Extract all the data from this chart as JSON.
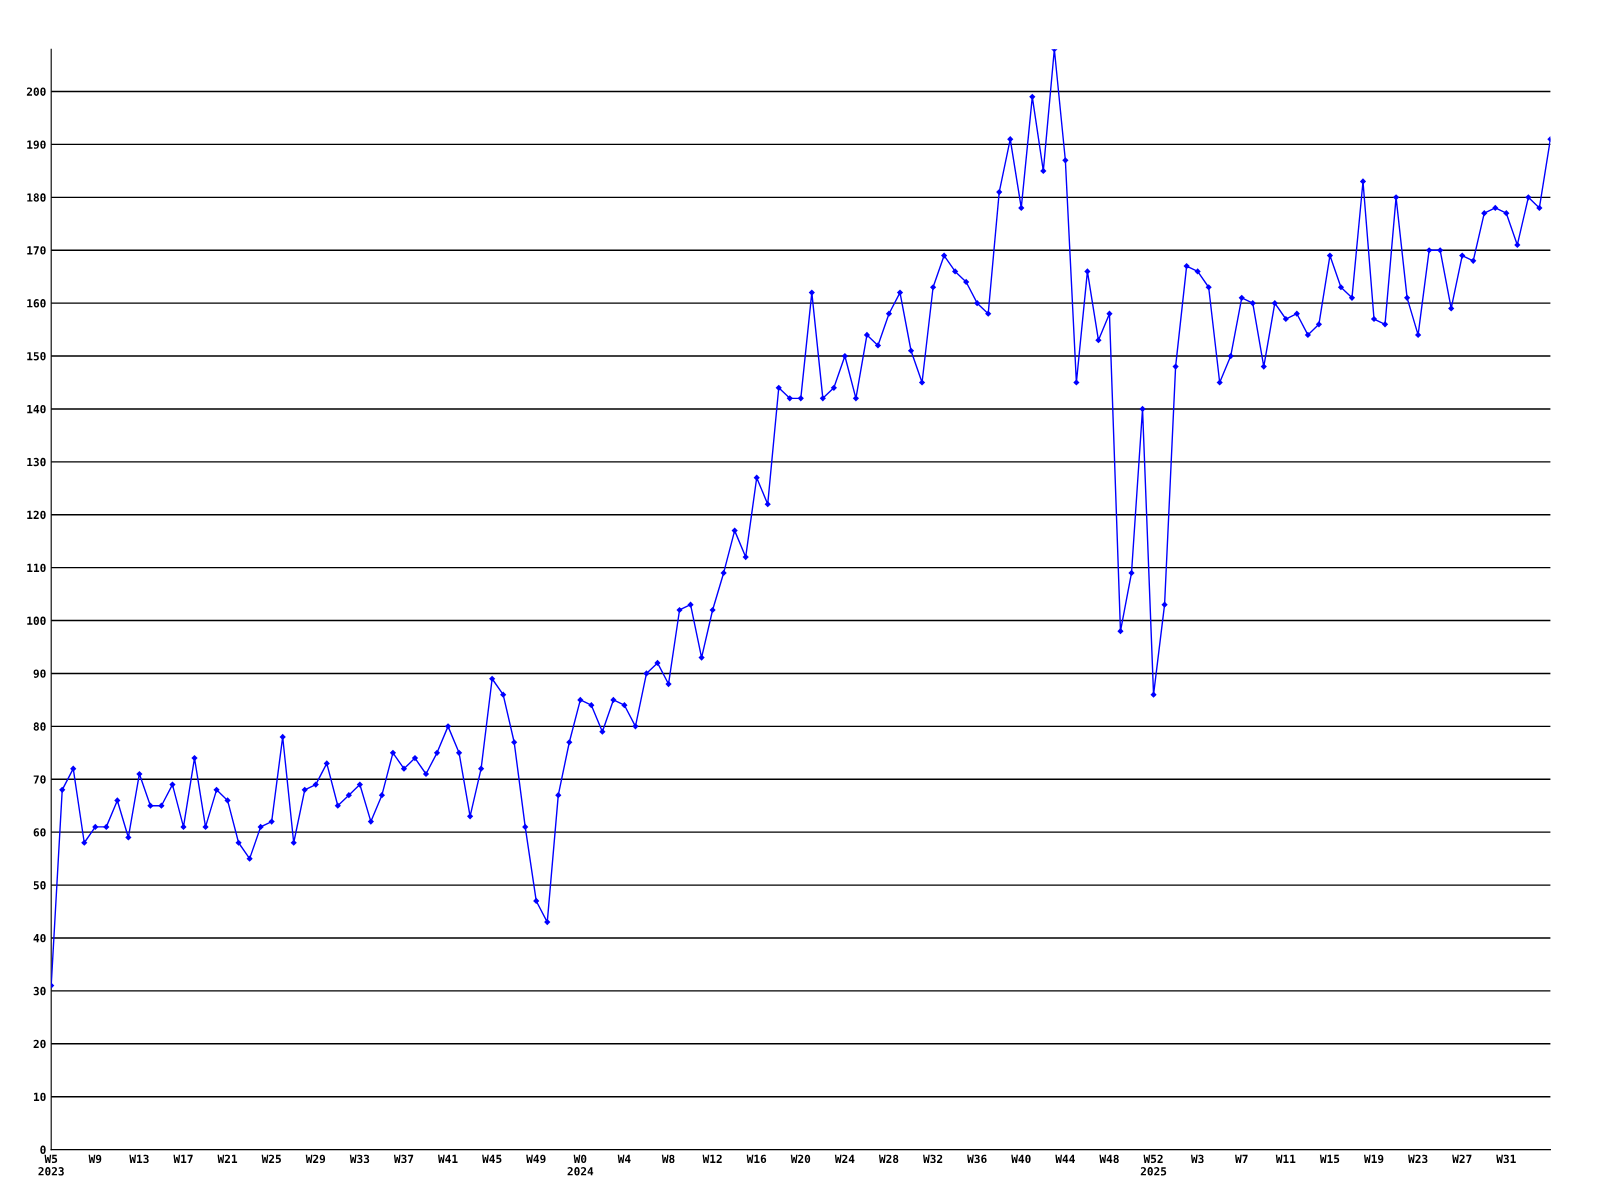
{
  "chart_data": {
    "type": "line",
    "categories": [
      "W5\n2023",
      null,
      null,
      null,
      "W9",
      null,
      null,
      null,
      "W13",
      null,
      null,
      null,
      "W17",
      null,
      null,
      null,
      "W21",
      null,
      null,
      null,
      "W25",
      null,
      null,
      null,
      "W29",
      null,
      null,
      null,
      "W33",
      null,
      null,
      null,
      "W37",
      null,
      null,
      null,
      "W41",
      null,
      null,
      null,
      "W45",
      null,
      null,
      null,
      "W49",
      null,
      null,
      null,
      "W0\n2024",
      null,
      null,
      null,
      "W4",
      null,
      null,
      null,
      "W8",
      null,
      null,
      null,
      "W12",
      null,
      null,
      null,
      "W16",
      null,
      null,
      null,
      "W20",
      null,
      null,
      null,
      "W24",
      null,
      null,
      null,
      "W28",
      null,
      null,
      null,
      "W32",
      null,
      null,
      null,
      "W36",
      null,
      null,
      null,
      "W40",
      null,
      null,
      null,
      "W44",
      null,
      null,
      null,
      "W48",
      null,
      null,
      null,
      "W52\n2025",
      null,
      null,
      null,
      "W3",
      null,
      null,
      null,
      "W7",
      null,
      null,
      null,
      "W11",
      null,
      null,
      null,
      "W15",
      null,
      null,
      null,
      "W19",
      null,
      null,
      null,
      "W23",
      null,
      null,
      null,
      "W27",
      null,
      null,
      null,
      "W31",
      null,
      null,
      null,
      null
    ],
    "series": [
      {
        "color": "#0000ff",
        "values": [
          31,
          68,
          72,
          58,
          61,
          61,
          66,
          59,
          71,
          65,
          65,
          69,
          61,
          74,
          61,
          68,
          66,
          58,
          55,
          61,
          62,
          78,
          58,
          68,
          69,
          73,
          65,
          67,
          69,
          62,
          67,
          75,
          72,
          74,
          71,
          75,
          80,
          75,
          63,
          72,
          89,
          86,
          77,
          61,
          47,
          43,
          67,
          77,
          85,
          84,
          79,
          85,
          84,
          80,
          90,
          92,
          88,
          102,
          103,
          93,
          102,
          109,
          117,
          112,
          127,
          122,
          144,
          142,
          142,
          162,
          142,
          144,
          150,
          142,
          154,
          152,
          158,
          162,
          151,
          145,
          163,
          169,
          166,
          164,
          160,
          158,
          181,
          191,
          178,
          199,
          185,
          208,
          187,
          145,
          166,
          153,
          158,
          98,
          109,
          140,
          86,
          103,
          148,
          167,
          166,
          163,
          145,
          150,
          161,
          160,
          148,
          160,
          157,
          158,
          154,
          156,
          169,
          163,
          161,
          183,
          157,
          156,
          180,
          161,
          154,
          170,
          170,
          159,
          169,
          168,
          177,
          178,
          177,
          171,
          180,
          178,
          191
        ]
      }
    ],
    "ylim": [
      0,
      208
    ],
    "yticks": [
      0,
      10,
      20,
      30,
      40,
      50,
      60,
      70,
      80,
      90,
      100,
      110,
      120,
      130,
      140,
      150,
      160,
      170,
      180,
      190,
      200
    ],
    "grid": "y",
    "marker": "diamond",
    "line_style": "solid"
  }
}
